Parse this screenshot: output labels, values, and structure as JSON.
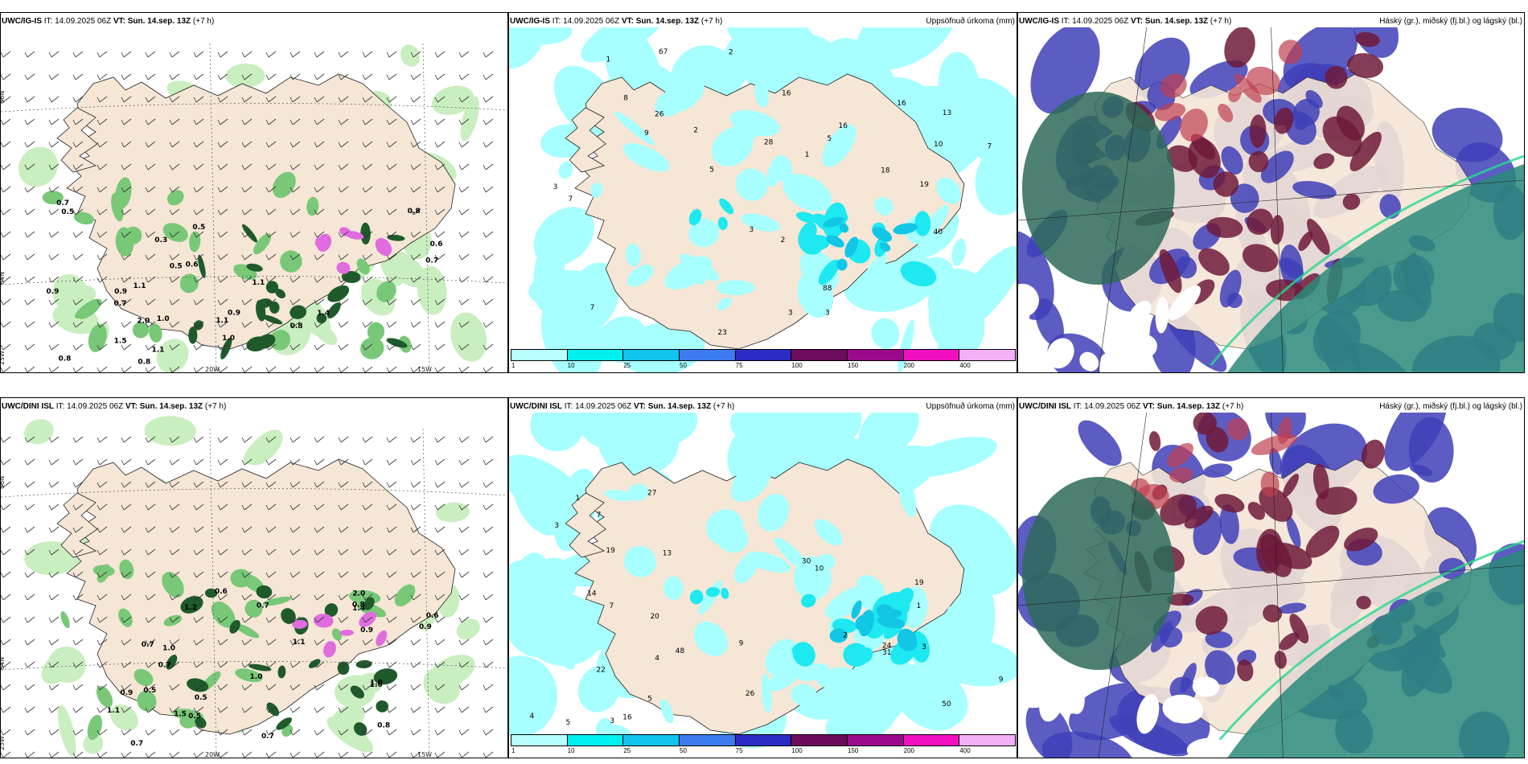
{
  "colors": {
    "land": "#f5e6d6",
    "precip_light": "#a8ffff",
    "precip_cyan": "#1ee8f0",
    "precip_deep": "#12c6e6",
    "green_light": "#c9eebf",
    "green_mid": "#78c878",
    "green_dark": "#1f5a2a",
    "magenta": "#e06ce0",
    "cloud_high": "#2d6a5a",
    "cloud_mid": "#4040b8",
    "cloud_low": "#6e1a3a",
    "cloud_teal": "#2a8a7a"
  },
  "colorbar": {
    "colors": [
      "#b8ffff",
      "#00f0f0",
      "#10c4ec",
      "#3c7cf0",
      "#2c2cc4",
      "#6c0a5c",
      "#9c0a8c",
      "#f010c0",
      "#f4b0f4"
    ],
    "ticks": [
      "1",
      "10",
      "25",
      "50",
      "75",
      "100",
      "150",
      "200",
      "400"
    ]
  },
  "rows": [
    {
      "panels": [
        {
          "model": "UWC/IG-IS",
          "it_label": "IT:",
          "it_value": "14.09.2025 06Z",
          "vt_label": "VT:",
          "vt_value": "Sun. 14.sep. 13Z",
          "lead": "(+7 h)",
          "right_title": "",
          "type": "wind",
          "lat_labels": [
            "66N",
            "64N"
          ],
          "lon_labels": [
            "20W",
            "15W",
            "25W"
          ],
          "values": [
            "0.5",
            "0.7",
            "0.9",
            "0.8",
            "0.6",
            "0.8",
            "0.5",
            "1.0",
            "0.8",
            "1.4",
            "2.0",
            "1.1",
            "0.8",
            "0.7",
            "0.9",
            "0.5",
            "1.1",
            "1.5",
            "0.3",
            "0.6",
            "0.7",
            "1.0",
            "1.1",
            "1.1",
            "0.9"
          ]
        },
        {
          "model": "UWC/IG-IS",
          "it_label": "IT:",
          "it_value": "14.09.2025 06Z",
          "vt_label": "VT:",
          "vt_value": "Sun. 14.sep. 13Z",
          "lead": "(+7 h)",
          "right_title": "Uppsöfnuð úrkoma (mm)",
          "type": "precip",
          "values": [
            "2",
            "2",
            "7",
            "7",
            "2",
            "19",
            "28",
            "26",
            "16",
            "40",
            "88",
            "67",
            "16",
            "18",
            "16",
            "13",
            "7",
            "9",
            "8",
            "3",
            "5",
            "10",
            "3",
            "23",
            "1",
            "1",
            "5",
            "3",
            "3"
          ]
        },
        {
          "model": "UWC/IG-IS",
          "it_label": "IT:",
          "it_value": "14.09.2025 06Z",
          "vt_label": "VT:",
          "vt_value": "Sun. 14.sep. 13Z",
          "lead": "(+7 h)",
          "right_title": "Háský (gr.), miðský (fj.bl.) og lágský (bl.)",
          "type": "cloud"
        }
      ]
    },
    {
      "panels": [
        {
          "model": "UWC/DINI ISL",
          "it_label": "IT:",
          "it_value": "14.09.2025 06Z",
          "vt_label": "VT:",
          "vt_value": "Sun. 14.sep. 13Z",
          "lead": "(+7 h)",
          "right_title": "",
          "type": "wind",
          "lat_labels": [
            "66N",
            "64N"
          ],
          "lon_labels": [
            "20W",
            "15W",
            "25W"
          ],
          "values": [
            "0.7",
            "0.5",
            "1.0",
            "0.9",
            "0.6",
            "0.7",
            "1.0",
            "0.5",
            "0.8",
            "0.9",
            "0.7",
            "1.2",
            "1.0",
            "0.5",
            "0.7",
            "0.8",
            "1.0",
            "1.4",
            "0.7",
            "1.1",
            "1.5",
            "1.1",
            "0.6",
            "0.9",
            "2.0"
          ]
        },
        {
          "model": "UWC/DINI ISL",
          "it_label": "IT:",
          "it_value": "14.09.2025 06Z",
          "vt_label": "VT:",
          "vt_value": "Sun. 14.sep. 13Z",
          "lead": "(+7 h)",
          "right_title": "Uppsöfnuð úrkoma (mm)",
          "type": "precip",
          "values": [
            "1",
            "3",
            "7",
            "14",
            "4",
            "24",
            "27",
            "19",
            "48",
            "19",
            "50",
            "16",
            "22",
            "26",
            "31",
            "30",
            "20",
            "13",
            "9",
            "10",
            "7",
            "5",
            "3",
            "2",
            "1",
            "4",
            "3",
            "9",
            "5"
          ]
        },
        {
          "model": "UWC/DINI ISL",
          "it_label": "IT:",
          "it_value": "14.09.2025 06Z",
          "vt_label": "VT:",
          "vt_value": "Sun. 14.sep. 13Z",
          "lead": "(+7 h)",
          "right_title": "Háský (gr.), miðský (fj.bl.) og lágský (bl.)",
          "type": "cloud"
        }
      ]
    }
  ]
}
